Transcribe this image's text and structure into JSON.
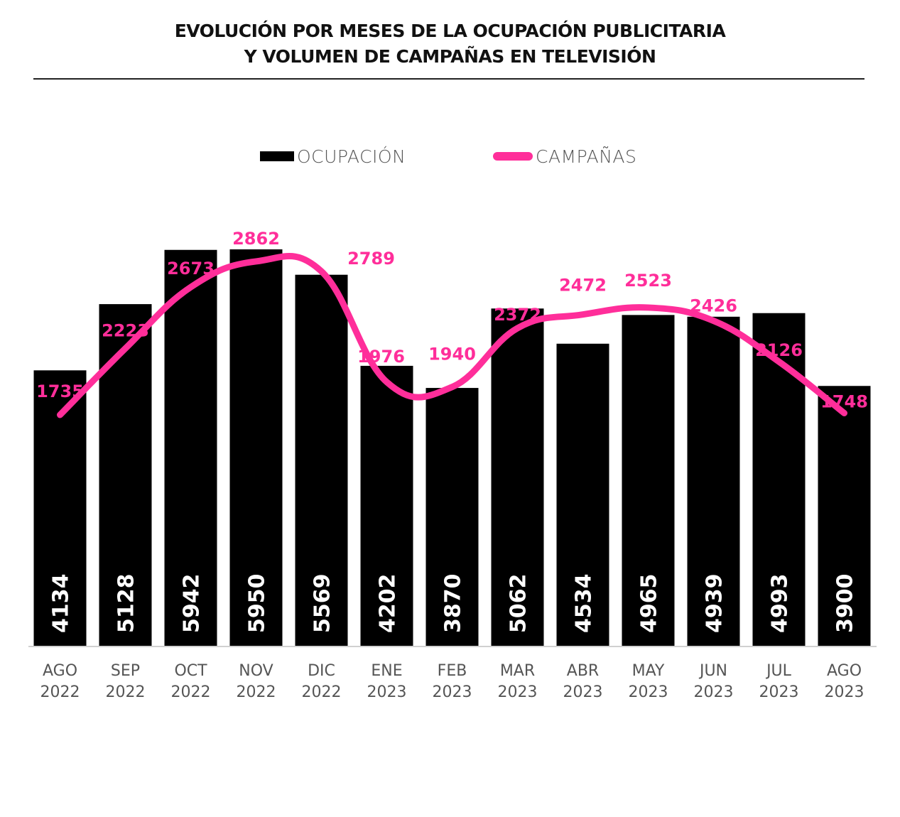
{
  "title": {
    "line1": "EVOLUCIÓN POR MESES DE LA OCUPACIÓN PUBLICITARIA",
    "line2": "Y VOLUMEN DE CAMPAÑAS EN TELEVISIÓN"
  },
  "legend": [
    {
      "label": "OCUPACIÓN",
      "kind": "bar",
      "color": "#000000"
    },
    {
      "label": "CAMPAÑAS",
      "kind": "line",
      "color": "#ff2e9a"
    }
  ],
  "chart_data": {
    "type": "bar",
    "title": "EVOLUCIÓN POR MESES DE LA OCUPACIÓN PUBLICITARIA Y VOLUMEN DE CAMPAÑAS EN TELEVISIÓN",
    "xlabel": "",
    "ylabel": "",
    "categories": [
      [
        "AGO",
        "2022"
      ],
      [
        "SEP",
        "2022"
      ],
      [
        "OCT",
        "2022"
      ],
      [
        "NOV",
        "2022"
      ],
      [
        "DIC",
        "2022"
      ],
      [
        "ENE",
        "2023"
      ],
      [
        "FEB",
        "2023"
      ],
      [
        "MAR",
        "2023"
      ],
      [
        "ABR",
        "2023"
      ],
      [
        "MAY",
        "2023"
      ],
      [
        "JUN",
        "2023"
      ],
      [
        "JUL",
        "2023"
      ],
      [
        "AGO",
        "2023"
      ]
    ],
    "series": [
      {
        "name": "OCUPACIÓN",
        "type": "bar",
        "color": "#000000",
        "values": [
          4134,
          5128,
          5942,
          5950,
          5569,
          4202,
          3870,
          5062,
          4534,
          4965,
          4939,
          4993,
          3900
        ]
      },
      {
        "name": "CAMPAÑAS",
        "type": "line",
        "smooth": true,
        "color": "#ff2e9a",
        "values": [
          1735,
          2223,
          2673,
          2862,
          2789,
          1976,
          1940,
          2372,
          2472,
          2523,
          2426,
          2126,
          1748
        ]
      }
    ],
    "ylim_bars": [
      0,
      6000
    ],
    "grid": false,
    "legend_position": "top-center",
    "axes_visible": false
  }
}
